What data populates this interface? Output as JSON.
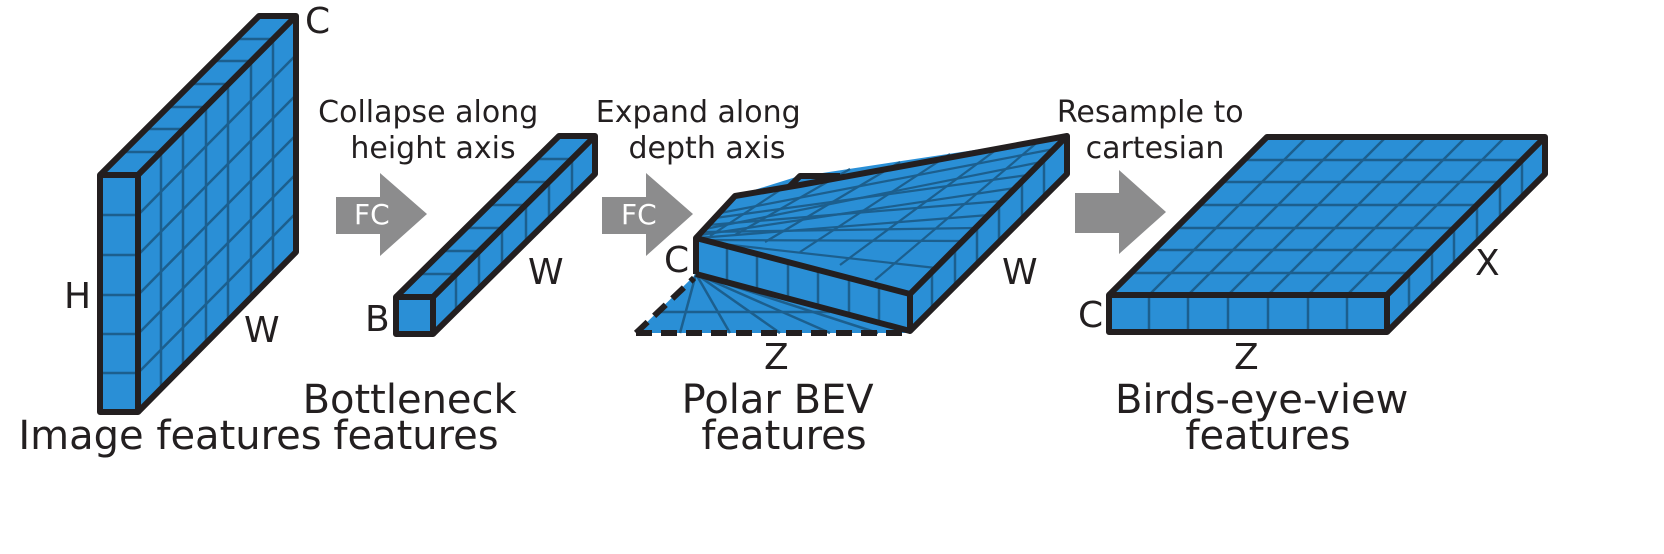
{
  "colors": {
    "face": "#2a8fd6",
    "grid": "#1c5f8e",
    "outline": "#231f20",
    "arrow": "#8c8c8d",
    "text": "#231f20"
  },
  "stages": {
    "image": {
      "caption": [
        "Image features"
      ],
      "axes": {
        "c": "C",
        "h": "H",
        "w": "W"
      }
    },
    "bottleneck": {
      "caption": [
        "Bottleneck",
        "features"
      ],
      "axes": {
        "b": "B",
        "w": "W"
      }
    },
    "polar": {
      "caption": [
        "Polar BEV",
        "features"
      ],
      "axes": {
        "c": "C",
        "w": "W",
        "z": "Z"
      }
    },
    "bev": {
      "caption": [
        "Birds-eye-view",
        "features"
      ],
      "axes": {
        "c": "C",
        "x": "X",
        "z": "Z"
      }
    }
  },
  "transitions": [
    {
      "text": [
        "Collapse along",
        "height axis"
      ],
      "arrow_label": "FC"
    },
    {
      "text": [
        "Expand along",
        "depth axis"
      ],
      "arrow_label": "FC"
    },
    {
      "text": [
        "Resample to",
        "cartesian"
      ],
      "arrow_label": ""
    }
  ]
}
